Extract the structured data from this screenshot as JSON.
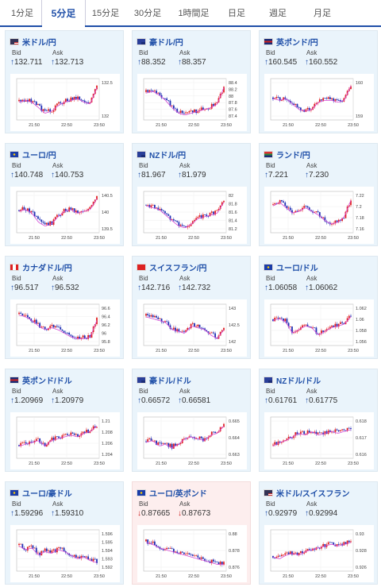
{
  "tabs": [
    {
      "label": "1分足",
      "active": false
    },
    {
      "label": "5分足",
      "active": true
    },
    {
      "label": "15分足",
      "active": false
    },
    {
      "label": "30分足",
      "active": false
    },
    {
      "label": "1時間足",
      "active": false
    },
    {
      "label": "日足",
      "active": false
    },
    {
      "label": "週足",
      "active": false
    },
    {
      "label": "月足",
      "active": false
    }
  ],
  "labels": {
    "bid": "Bid",
    "ask": "Ask"
  },
  "colors": {
    "up_candle": "#1f2fb4",
    "down_candle": "#e02020",
    "ma_line": "#d447d4",
    "accent": "#1f4fa8",
    "down_text": "#cc2222"
  },
  "cards": [
    {
      "pair": "米ドル/円",
      "flags": [
        "us",
        "jp"
      ],
      "bid": "132.711",
      "ask": "132.713",
      "dir": "up",
      "ticks": [
        "132.5",
        "132"
      ],
      "xlabels": [
        "21:50",
        "22:50",
        "23:50"
      ]
    },
    {
      "pair": "豪ドル/円",
      "flags": [
        "au",
        "jp"
      ],
      "bid": "88.352",
      "ask": "88.357",
      "dir": "up",
      "ticks": [
        "88.4",
        "88.2",
        "88",
        "87.8",
        "87.6",
        "87.4"
      ],
      "xlabels": [
        "21:50",
        "22:50",
        "23:50"
      ]
    },
    {
      "pair": "英ポンド/円",
      "flags": [
        "gb",
        "jp"
      ],
      "bid": "160.545",
      "ask": "160.552",
      "dir": "up",
      "ticks": [
        "160",
        "159"
      ],
      "xlabels": [
        "21:50",
        "22:50",
        "23:50"
      ]
    },
    {
      "pair": "ユーロ/円",
      "flags": [
        "eu",
        "jp"
      ],
      "bid": "140.748",
      "ask": "140.753",
      "dir": "up",
      "ticks": [
        "140.5",
        "140",
        "139.5"
      ],
      "xlabels": [
        "21:50",
        "22:50",
        "23:50"
      ]
    },
    {
      "pair": "NZドル/円",
      "flags": [
        "nz",
        "jp"
      ],
      "bid": "81.967",
      "ask": "81.979",
      "dir": "up",
      "ticks": [
        "82",
        "81.8",
        "81.6",
        "81.4",
        "81.2"
      ],
      "xlabels": [
        "21:50",
        "22:50",
        "23:50"
      ]
    },
    {
      "pair": "ランド/円",
      "flags": [
        "za",
        "jp"
      ],
      "bid": "7.221",
      "ask": "7.230",
      "dir": "up",
      "ticks": [
        "7.22",
        "7.2",
        "7.18",
        "7.16"
      ],
      "xlabels": [
        "21:50",
        "22:50",
        "23:50"
      ]
    },
    {
      "pair": "カナダドル/円",
      "flags": [
        "ca",
        "jp"
      ],
      "bid": "96.517",
      "ask": "96.532",
      "dir": "up",
      "ticks": [
        "96.6",
        "96.4",
        "96.2",
        "96",
        "95.8"
      ],
      "xlabels": [
        "21:50",
        "22:50",
        "23:50"
      ]
    },
    {
      "pair": "スイスフラン/円",
      "flags": [
        "ch",
        "jp"
      ],
      "bid": "142.716",
      "ask": "142.732",
      "dir": "up",
      "ticks": [
        "143",
        "142.5",
        "142"
      ],
      "xlabels": [
        "21:50",
        "22:50",
        "23:50"
      ]
    },
    {
      "pair": "ユーロ/ドル",
      "flags": [
        "eu",
        "us"
      ],
      "bid": "1.06058",
      "ask": "1.06062",
      "dir": "up",
      "ticks": [
        "1.062",
        "1.06",
        "1.058",
        "1.056"
      ],
      "xlabels": [
        "21:50",
        "22:50",
        "23:50"
      ]
    },
    {
      "pair": "英ポンド/ドル",
      "flags": [
        "gb",
        "us"
      ],
      "bid": "1.20969",
      "ask": "1.20979",
      "dir": "up",
      "ticks": [
        "1.21",
        "1.208",
        "1.206",
        "1.204"
      ],
      "xlabels": [
        "21:50",
        "22:50",
        "23:50"
      ]
    },
    {
      "pair": "豪ドル/ドル",
      "flags": [
        "au",
        "us"
      ],
      "bid": "0.66572",
      "ask": "0.66581",
      "dir": "up",
      "ticks": [
        "0.665",
        "0.664",
        "0.663"
      ],
      "xlabels": [
        "21:50",
        "22:50",
        "23:50"
      ]
    },
    {
      "pair": "NZドル/ドル",
      "flags": [
        "nz",
        "us"
      ],
      "bid": "0.61761",
      "ask": "0.61775",
      "dir": "up",
      "ticks": [
        "0.618",
        "0.617",
        "0.616"
      ],
      "xlabels": [
        "21:50",
        "22:50",
        "23:50"
      ]
    },
    {
      "pair": "ユーロ/豪ドル",
      "flags": [
        "eu",
        "au"
      ],
      "bid": "1.59296",
      "ask": "1.59310",
      "dir": "up",
      "ticks": [
        "1.596",
        "1.595",
        "1.594",
        "1.593",
        "1.592"
      ],
      "xlabels": [
        "21:50",
        "22:50",
        "23:50"
      ]
    },
    {
      "pair": "ユーロ/英ポンド",
      "flags": [
        "eu",
        "gb"
      ],
      "bid": "0.87665",
      "ask": "0.87673",
      "dir": "down",
      "ticks": [
        "0.88",
        "0.878",
        "0.876"
      ],
      "xlabels": [
        "21:50",
        "22:50",
        "23:50"
      ]
    },
    {
      "pair": "米ドル/スイスフラン",
      "flags": [
        "us",
        "ch"
      ],
      "bid": "0.92979",
      "ask": "0.92994",
      "dir": "up",
      "ticks": [
        "0.93",
        "0.928",
        "0.926"
      ],
      "xlabels": [
        "21:50",
        "22:50",
        "23:50"
      ]
    }
  ]
}
